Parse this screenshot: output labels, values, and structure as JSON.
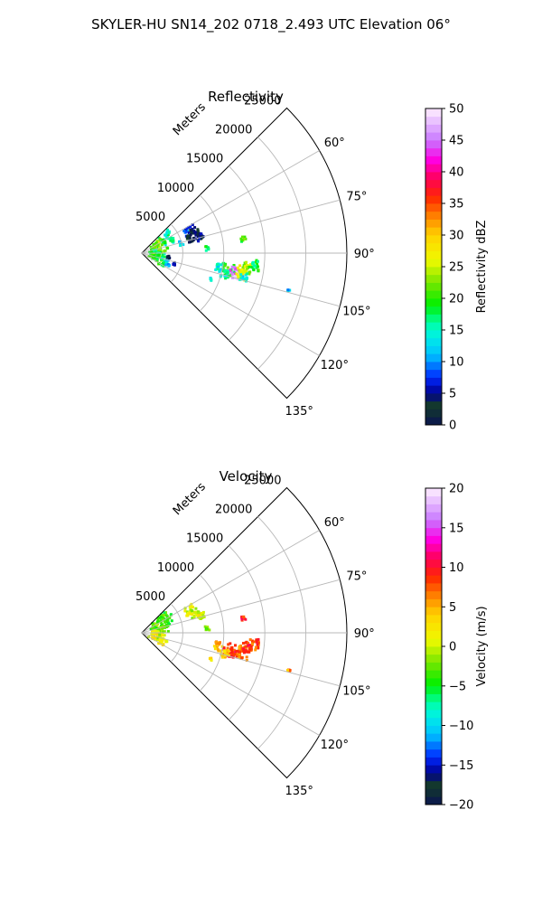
{
  "suptitle": "SKYLER-HU  SN14_202  0718_2.493 UTC Elevation 06°",
  "chart_data": [
    {
      "type": "polar-sector",
      "title": "Reflectivity",
      "radial_label": "Meters",
      "radial_ticks": [
        5000,
        10000,
        15000,
        20000,
        25000
      ],
      "rmax": 25000,
      "azimuth_range": [
        45,
        135
      ],
      "azimuth_ticks": [
        60,
        75,
        90,
        105,
        120,
        135
      ],
      "azimuth_tick_labels": [
        "60°",
        "75°",
        "90°",
        "105°",
        "120°",
        "135°"
      ],
      "grid": true,
      "colorbar": {
        "label": "Reflectivity dBZ",
        "min": 0,
        "max": 50,
        "ticks": [
          "0",
          "5",
          "10",
          "15",
          "20",
          "25",
          "30",
          "35",
          "40",
          "45",
          "50"
        ]
      },
      "echoes": [
        {
          "az": 60,
          "r": 3500,
          "value": 16,
          "size": 1500
        },
        {
          "az": 68,
          "r": 2500,
          "value": 20,
          "size": 1600
        },
        {
          "az": 76,
          "r": 2000,
          "value": 24,
          "size": 1400
        },
        {
          "az": 83,
          "r": 1800,
          "value": 22,
          "size": 1200
        },
        {
          "az": 97,
          "r": 1500,
          "value": 18,
          "size": 1100
        },
        {
          "az": 104,
          "r": 2000,
          "value": 21,
          "size": 1200
        },
        {
          "az": 100,
          "r": 2400,
          "value": 16,
          "size": 900
        },
        {
          "az": 115,
          "r": 3000,
          "value": 17,
          "size": 700
        },
        {
          "az": 111,
          "r": 3400,
          "value": 12,
          "size": 600
        },
        {
          "az": 66,
          "r": 6500,
          "value": 8,
          "size": 1400
        },
        {
          "az": 70,
          "r": 7000,
          "value": 3,
          "size": 1300
        },
        {
          "az": 75,
          "r": 7500,
          "value": 4,
          "size": 1000
        },
        {
          "az": 73,
          "r": 6200,
          "value": 1,
          "size": 900
        },
        {
          "az": 76,
          "r": 5000,
          "value": 12,
          "size": 500
        },
        {
          "az": 98,
          "r": 3300,
          "value": 2,
          "size": 300
        },
        {
          "az": 108,
          "r": 4200,
          "value": 6,
          "size": 300
        },
        {
          "az": 86,
          "r": 8000,
          "value": 18,
          "size": 500
        },
        {
          "az": 82,
          "r": 12500,
          "value": 20,
          "size": 600
        },
        {
          "az": 100,
          "r": 9500,
          "value": 14,
          "size": 1000
        },
        {
          "az": 101,
          "r": 10800,
          "value": 20,
          "size": 1500
        },
        {
          "az": 102,
          "r": 11500,
          "value": 46,
          "size": 1300
        },
        {
          "az": 101,
          "r": 12500,
          "value": 27,
          "size": 1500
        },
        {
          "az": 98,
          "r": 13000,
          "value": 24,
          "size": 1300
        },
        {
          "az": 96,
          "r": 13800,
          "value": 18,
          "size": 1200
        },
        {
          "az": 104,
          "r": 10500,
          "value": 16,
          "size": 1000
        },
        {
          "az": 103,
          "r": 12800,
          "value": 14,
          "size": 900
        },
        {
          "az": 111,
          "r": 9000,
          "value": 14,
          "size": 300
        },
        {
          "az": 104,
          "r": 18500,
          "value": 12,
          "size": 300
        }
      ]
    },
    {
      "type": "polar-sector",
      "title": "Velocity",
      "radial_label": "Meters",
      "radial_ticks": [
        5000,
        10000,
        15000,
        20000,
        25000
      ],
      "rmax": 25000,
      "azimuth_range": [
        45,
        135
      ],
      "azimuth_ticks": [
        60,
        75,
        90,
        105,
        120,
        135
      ],
      "azimuth_tick_labels": [
        "60°",
        "75°",
        "90°",
        "105°",
        "120°",
        "135°"
      ],
      "grid": true,
      "colorbar": {
        "label": "Velocity (m/s)",
        "min": -20,
        "max": 20,
        "ticks": [
          "−20",
          "−15",
          "−10",
          "−5",
          "0",
          "5",
          "10",
          "15",
          "20"
        ]
      },
      "echoes": [
        {
          "az": 60,
          "r": 3500,
          "value": -4,
          "size": 1500
        },
        {
          "az": 68,
          "r": 2500,
          "value": -3,
          "size": 1600
        },
        {
          "az": 76,
          "r": 2000,
          "value": -2,
          "size": 1400
        },
        {
          "az": 83,
          "r": 1800,
          "value": -3,
          "size": 1200
        },
        {
          "az": 97,
          "r": 1500,
          "value": 1,
          "size": 1100
        },
        {
          "az": 104,
          "r": 2000,
          "value": 2,
          "size": 1200
        },
        {
          "az": 100,
          "r": 2400,
          "value": 0,
          "size": 900
        },
        {
          "az": 115,
          "r": 3000,
          "value": 2,
          "size": 700
        },
        {
          "az": 66,
          "r": 6500,
          "value": 1,
          "size": 1300
        },
        {
          "az": 70,
          "r": 7000,
          "value": 0,
          "size": 1200
        },
        {
          "az": 75,
          "r": 7500,
          "value": 1,
          "size": 900
        },
        {
          "az": 86,
          "r": 8000,
          "value": -2,
          "size": 500
        },
        {
          "az": 82,
          "r": 12500,
          "value": 9,
          "size": 600
        },
        {
          "az": 100,
          "r": 9500,
          "value": 5,
          "size": 1000
        },
        {
          "az": 101,
          "r": 10800,
          "value": 8,
          "size": 1500
        },
        {
          "az": 102,
          "r": 11500,
          "value": 10,
          "size": 1300
        },
        {
          "az": 101,
          "r": 12500,
          "value": 7,
          "size": 1500
        },
        {
          "az": 98,
          "r": 13000,
          "value": 9,
          "size": 1300
        },
        {
          "az": 104,
          "r": 10500,
          "value": 4,
          "size": 1000
        },
        {
          "az": 96,
          "r": 13800,
          "value": 8,
          "size": 1200
        },
        {
          "az": 111,
          "r": 9000,
          "value": 3,
          "size": 300
        },
        {
          "az": 104,
          "r": 18500,
          "value": 6,
          "size": 300
        }
      ]
    }
  ]
}
